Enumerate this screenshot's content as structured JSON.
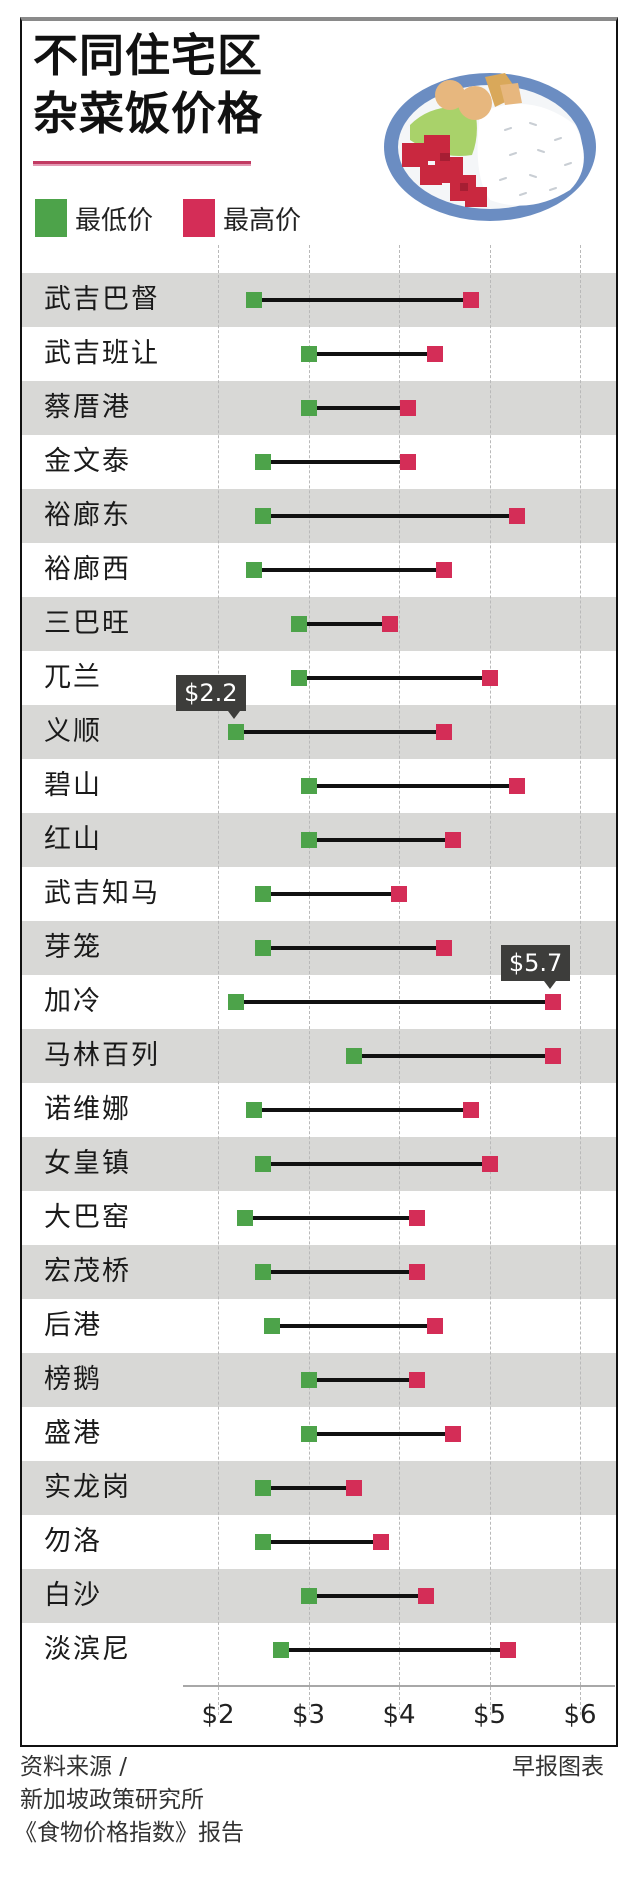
{
  "title": {
    "line1": "不同住宅区",
    "line2": "杂菜饭价格"
  },
  "legend": [
    {
      "label": "最低价",
      "color": "#4da34a"
    },
    {
      "label": "最高价",
      "color": "#d42d57"
    }
  ],
  "callouts": {
    "min_label": "$2.2",
    "max_label": "$5.7"
  },
  "axis": {
    "ticks": [
      "$2",
      "$3",
      "$4",
      "$5",
      "$6"
    ]
  },
  "footer": {
    "source_line1": "资料来源 /",
    "source_line2": "新加坡政策研究所",
    "source_line3": "《食物价格指数》报告",
    "credit": "早报图表"
  },
  "chart_data": {
    "type": "dumbbell",
    "title": "不同住宅区杂菜饭价格",
    "xlabel": "",
    "ylabel": "",
    "xlim": [
      2,
      6
    ],
    "x_ticks": [
      2,
      3,
      4,
      5,
      6
    ],
    "x_tick_labels": [
      "$2",
      "$3",
      "$4",
      "$5",
      "$6"
    ],
    "grid": "vertical dashed",
    "legend": [
      "最低价",
      "最高价"
    ],
    "legend_position": "top-left",
    "annotations": [
      {
        "text": "$2.2",
        "category": "义顺",
        "series": "最低价"
      },
      {
        "text": "$5.7",
        "category": "加冷",
        "series": "最高价"
      }
    ],
    "categories": [
      "武吉巴督",
      "武吉班让",
      "蔡厝港",
      "金文泰",
      "裕廊东",
      "裕廊西",
      "三巴旺",
      "兀兰",
      "义顺",
      "碧山",
      "红山",
      "武吉知马",
      "芽笼",
      "加冷",
      "马林百列",
      "诺维娜",
      "女皇镇",
      "大巴窑",
      "宏茂桥",
      "后港",
      "榜鹅",
      "盛港",
      "实龙岗",
      "勿洛",
      "白沙",
      "淡滨尼"
    ],
    "series": [
      {
        "name": "最低价",
        "color": "#4da34a",
        "values": [
          2.4,
          3.0,
          3.0,
          2.5,
          2.5,
          2.4,
          2.9,
          2.9,
          2.2,
          3.0,
          3.0,
          2.5,
          2.5,
          2.2,
          3.5,
          2.4,
          2.5,
          2.3,
          2.5,
          2.6,
          3.0,
          3.0,
          2.5,
          2.5,
          3.0,
          2.7
        ]
      },
      {
        "name": "最高价",
        "color": "#d42d57",
        "values": [
          4.8,
          4.4,
          4.1,
          4.1,
          5.3,
          4.5,
          3.9,
          5.0,
          4.5,
          5.3,
          4.6,
          4.0,
          4.5,
          5.7,
          5.7,
          4.8,
          5.0,
          4.2,
          4.2,
          4.4,
          4.2,
          4.6,
          3.5,
          3.8,
          4.3,
          5.2
        ]
      }
    ]
  }
}
